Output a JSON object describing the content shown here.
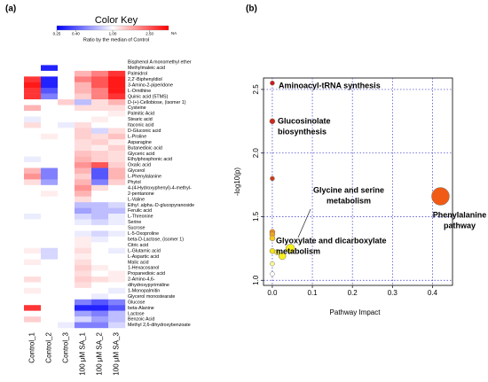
{
  "panel_labels": [
    "(a)",
    "(b)"
  ],
  "chart_data": [
    {
      "type": "heatmap",
      "columns": [
        "Control_1",
        "Control_2",
        "Control_3",
        "100 μM SA_1",
        "100 μM SA_2",
        "100 μM SA_3"
      ],
      "rows": [
        "Bisphenol A monomethyl ether",
        "Methylmaleic acid",
        "Palmidrol",
        "2,2'-Biphenyldiol",
        "3-Amino-2-piperidone",
        "L-Ornithine",
        "Quinic acid (5TMS)",
        "D-(+)-Cellobiose, (isomer 1)",
        "Cysteine",
        "Palmitic Acid",
        "Stearic acid",
        "Itaconic acid",
        "D-Gluconic acid",
        "L-Proline",
        "Asparagine",
        "Butanedioic acid",
        "Glyceric acid",
        "Ethylphosphonic acid",
        "Oxalic acid",
        "Glycerol",
        "L-Phenylalanine",
        "Phytol",
        "4-(4-Hydroxyphenyl)-4-methyl-",
        "2-pentanone",
        "L-Valine",
        "Ethyl .alpha.-D-glucopyranoside",
        "Ferulic acid",
        "L-Threonine",
        "Serine",
        "Sucrose",
        "L-5-Oxoproline",
        "beta-D-Lactose, (isomer 1)",
        "Citric acid",
        "L-Glutamic acid",
        "L-Aspartic acid",
        "Malic acid",
        "1-Hexacosanol",
        "Propanedioic acid",
        "2-Amino-4,6-",
        "dihydroxypyrimidine",
        "1-Monopalmitin",
        "Glycerol monostearate",
        "Glucose",
        "beta-Alanine",
        "Lactose",
        "Benzoic Acid",
        "Methyl 2,6-dihydroxybenzoate"
      ],
      "values": [
        [
          1,
          1,
          1,
          1,
          1,
          1
        ],
        [
          1,
          0.3,
          1,
          1,
          1,
          1
        ],
        [
          1,
          1,
          1,
          1.5,
          2,
          3
        ],
        [
          3,
          0.3,
          1,
          2,
          2.5,
          3.5
        ],
        [
          3.5,
          0.3,
          1,
          1.5,
          2.5,
          3.5
        ],
        [
          3,
          0.4,
          1,
          1.5,
          2,
          3.5
        ],
        [
          3,
          0.5,
          1,
          1.3,
          2,
          3
        ],
        [
          1,
          1,
          1.3,
          0.7,
          1.2,
          1.5
        ],
        [
          1.5,
          1,
          1,
          1.2,
          1.2,
          1.2
        ],
        [
          1,
          1,
          1,
          1,
          1,
          1.1
        ],
        [
          0.9,
          1,
          1,
          1,
          1.1,
          1
        ],
        [
          1.2,
          1,
          0.9,
          1.2,
          1,
          1
        ],
        [
          1,
          1,
          1,
          1.3,
          0.8,
          1.2
        ],
        [
          1,
          1.1,
          1,
          1.3,
          1.2,
          1.4
        ],
        [
          1,
          1,
          1,
          1.2,
          1.3,
          1.1
        ],
        [
          1,
          1,
          1,
          1.2,
          1.1,
          1.3
        ],
        [
          1,
          1,
          1,
          1.4,
          1.3,
          1.2
        ],
        [
          0.9,
          1,
          1,
          1.5,
          1.3,
          1.2
        ],
        [
          1,
          1,
          1,
          1.8,
          2.5,
          1.3
        ],
        [
          1.5,
          0.5,
          1,
          1.5,
          0.4,
          1.5
        ],
        [
          1.8,
          0.5,
          1,
          1.3,
          0.4,
          1.5
        ],
        [
          1.2,
          0.6,
          1,
          1.5,
          0.5,
          1.3
        ],
        [
          1,
          1,
          1,
          1.8,
          1.2,
          1
        ],
        [
          1,
          1.1,
          1,
          1.5,
          1,
          1
        ],
        [
          1,
          1,
          1,
          1.2,
          1,
          1
        ],
        [
          1,
          1,
          1,
          0.7,
          0.7,
          0.8
        ],
        [
          1,
          1,
          1,
          0.6,
          0.7,
          0.7
        ],
        [
          0.9,
          1,
          1,
          0.8,
          0.7,
          0.9
        ],
        [
          1,
          1,
          1,
          0.9,
          0.8,
          0.9
        ],
        [
          1,
          1,
          1,
          1,
          1,
          1
        ],
        [
          1,
          1,
          1,
          0.9,
          0.8,
          0.9
        ],
        [
          1,
          1,
          1,
          1.1,
          0.9,
          1
        ],
        [
          1,
          1,
          1,
          1.1,
          1,
          1
        ],
        [
          1.1,
          0.8,
          1,
          1.2,
          1,
          0.9
        ],
        [
          1,
          0.8,
          1,
          1.1,
          1,
          1
        ],
        [
          1.1,
          1,
          1,
          1.2,
          1,
          1
        ],
        [
          1,
          1,
          1,
          1.3,
          1.1,
          1
        ],
        [
          1,
          1,
          1,
          1.2,
          1,
          1.1
        ],
        [
          1.2,
          1,
          1,
          1.3,
          1.2,
          1.1
        ],
        [
          1,
          1,
          1,
          1.2,
          1,
          1
        ],
        [
          1.1,
          1,
          1,
          1,
          1,
          0.9
        ],
        [
          1,
          1,
          1,
          1,
          0.9,
          1
        ],
        [
          1,
          1,
          1,
          0.5,
          0.4,
          0.5
        ],
        [
          3,
          1,
          1,
          0.3,
          0.3,
          0.4
        ],
        [
          1,
          1,
          1,
          0.6,
          0.5,
          0.7
        ],
        [
          1.3,
          1,
          1,
          0.8,
          0.6,
          0.7
        ],
        [
          1,
          1,
          0.9,
          0.5,
          0.5,
          0.8
        ]
      ],
      "colors": {
        "low": "#0000ff",
        "mid": "#ffffff",
        "high": "#ff0000"
      },
      "color_key": {
        "title": "Color Key",
        "subtitle": "Ratio by the median of Control",
        "clim": [
          0.25,
          4
        ],
        "ticks": [
          {
            "value": 0.25,
            "label": "0.25"
          },
          {
            "value": 0.4,
            "label": "0.40"
          },
          {
            "value": 1,
            "label": "1.00"
          },
          {
            "value": 2.5,
            "label": "2.50"
          }
        ],
        "na_label": "NA"
      }
    },
    {
      "type": "scatter",
      "xlabel": "Pathway Impact",
      "ylabel": "-log10(p)",
      "xlim": [
        -0.022,
        0.45
      ],
      "ylim": [
        0.96,
        2.59
      ],
      "xticks": [
        {
          "value": 0,
          "label": "0.0"
        },
        {
          "value": 0.1,
          "label": "0.1"
        },
        {
          "value": 0.2,
          "label": "0.2"
        },
        {
          "value": 0.3,
          "label": "0.3"
        },
        {
          "value": 0.4,
          "label": "0.4"
        }
      ],
      "yticks": [
        {
          "value": 1,
          "label": "1.0"
        },
        {
          "value": 1.5,
          "label": "1.5"
        },
        {
          "value": 2,
          "label": "2.0"
        },
        {
          "value": 2.5,
          "label": "2.5"
        }
      ],
      "grid": true,
      "grid_color": "#3333cc",
      "x": [
        0,
        0,
        0,
        0.42,
        0,
        0,
        0,
        0,
        0.045,
        0.025,
        0.012,
        0,
        0
      ],
      "y": [
        2.55,
        2.25,
        1.8,
        1.66,
        1.38,
        1.36,
        1.33,
        1.23,
        1.25,
        1.19,
        1.22,
        1.13,
        1.05
      ],
      "sizes": [
        2.5,
        3,
        2.5,
        10,
        3,
        3,
        3,
        3,
        5,
        4,
        3,
        2.5,
        2.5
      ],
      "colors": [
        "#cc1a1a",
        "#cc2a1a",
        "#cc3a1a",
        "#f05a14",
        "#f08c1e",
        "#f5a21e",
        "#f5c81e",
        "#f5e01e",
        "#f8f01e",
        "#f8f01e",
        "#f8f050",
        "#fbfa90",
        "#ffffff"
      ],
      "annotations": [
        {
          "lines": [
            "Aminoacyl-tRNA  synthesis"
          ]
        },
        {
          "lines": [
            "Glucosinolate",
            "biosynthesis"
          ]
        },
        {
          "lines": [
            "Glycine and serine",
            "metabolism"
          ]
        },
        {
          "lines": [
            "Phenylalanine",
            "pathway"
          ]
        },
        {
          "lines": [
            "Glyoxylate and dicarboxylate",
            "metabolism"
          ]
        }
      ]
    }
  ]
}
